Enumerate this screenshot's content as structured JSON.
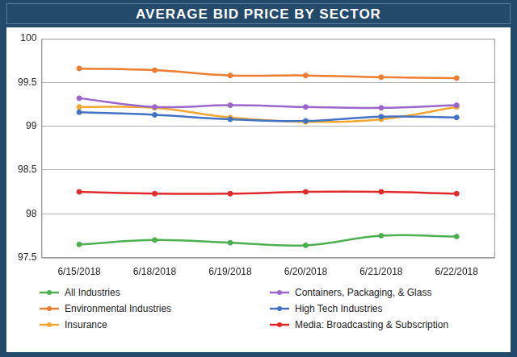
{
  "chart_data": {
    "type": "line",
    "title": "AVERAGE BID PRICE BY SECTOR",
    "categories": [
      "6/15/2018",
      "6/18/2018",
      "6/19/2018",
      "6/20/2018",
      "6/21/2018",
      "6/22/2018"
    ],
    "series": [
      {
        "name": "All Industries",
        "color": "#4caf50",
        "values": [
          97.65,
          97.7,
          97.67,
          97.64,
          97.75,
          97.74
        ]
      },
      {
        "name": "Containers, Packaging, & Glass",
        "color": "#9966cc",
        "values": [
          99.32,
          99.22,
          99.24,
          99.22,
          99.21,
          99.24
        ]
      },
      {
        "name": "Environmental Industries",
        "color": "#ed7d31",
        "values": [
          99.66,
          99.64,
          99.58,
          99.58,
          99.56,
          99.55
        ]
      },
      {
        "name": "High Tech Industries",
        "color": "#4472c4",
        "values": [
          99.16,
          99.13,
          99.08,
          99.06,
          99.11,
          99.1
        ]
      },
      {
        "name": "Insurance",
        "color": "#f0a830",
        "values": [
          99.22,
          99.21,
          99.1,
          99.05,
          99.08,
          99.22
        ]
      },
      {
        "name": "Media: Broadcasting & Subscription",
        "color": "#e02a2a",
        "values": [
          98.25,
          98.23,
          98.23,
          98.25,
          98.25,
          98.23
        ]
      }
    ],
    "ylim": [
      97.5,
      100
    ],
    "yticks": [
      97.5,
      98,
      98.5,
      99,
      99.5,
      100
    ],
    "grid": true,
    "legend": "bottom",
    "marker": "circle"
  }
}
